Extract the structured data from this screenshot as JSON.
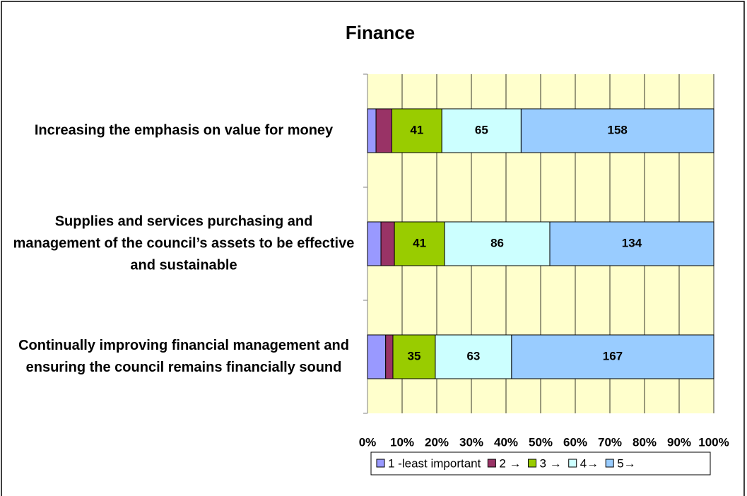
{
  "chart_data": {
    "type": "bar",
    "orientation": "horizontal",
    "stack": "percent",
    "title": "Finance",
    "categories": [
      "Increasing the emphasis on value for money",
      "Supplies and services purchasing and management of the council’s assets to be effective and sustainable",
      "Continually improving financial management and ensuring the council remains financially sound"
    ],
    "series": [
      {
        "name": "1 -least important",
        "color": "#9999ff",
        "values": [
          7,
          11,
          15
        ]
      },
      {
        "name": "2 →",
        "color": "#993366",
        "values": [
          13,
          11,
          6
        ]
      },
      {
        "name": "3 →",
        "color": "#99cc00",
        "values": [
          41,
          41,
          35
        ]
      },
      {
        "name": "4→",
        "color": "#ccffff",
        "values": [
          65,
          86,
          63
        ]
      },
      {
        "name": "5→",
        "color": "#99ccff",
        "values": [
          158,
          134,
          167
        ]
      }
    ],
    "labeled_series": [
      2,
      3,
      4
    ],
    "xlim": [
      0,
      100
    ],
    "xticks": [
      {
        "value": 0,
        "label": "0%"
      },
      {
        "value": 10,
        "label": "10%"
      },
      {
        "value": 20,
        "label": "20%"
      },
      {
        "value": 30,
        "label": "30%"
      },
      {
        "value": 40,
        "label": "40%"
      },
      {
        "value": 50,
        "label": "50%"
      },
      {
        "value": 60,
        "label": "60%"
      },
      {
        "value": 70,
        "label": "70%"
      },
      {
        "value": 80,
        "label": "80%"
      },
      {
        "value": 90,
        "label": "90%"
      },
      {
        "value": 100,
        "label": "100%"
      }
    ],
    "grid": true,
    "plot_background": "#ffffcc",
    "legend": "bottom"
  }
}
